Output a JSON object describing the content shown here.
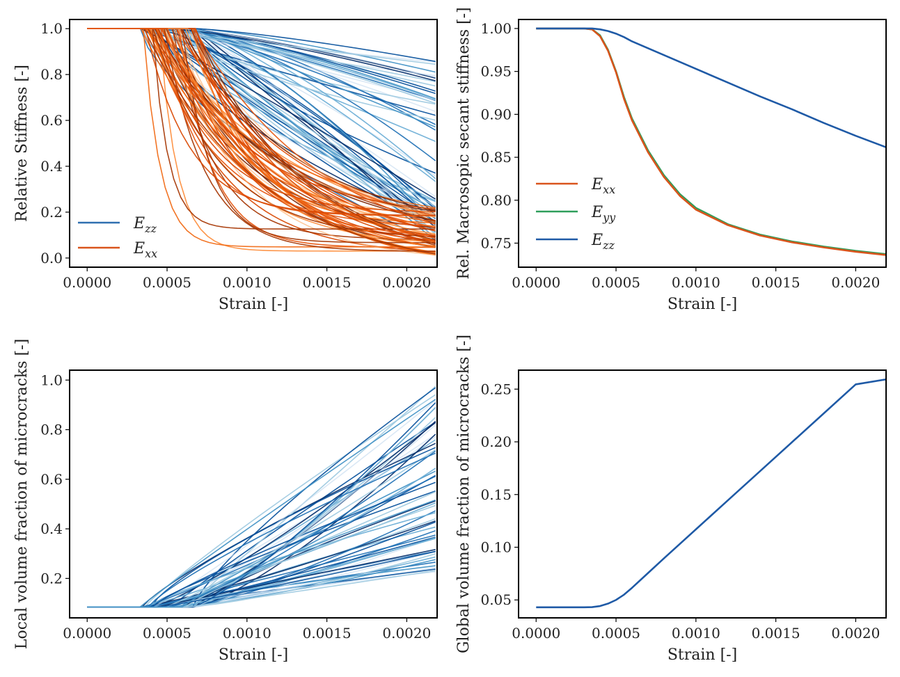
{
  "chart_data": [
    {
      "id": "p1",
      "type": "line",
      "xlabel": "Strain [-]",
      "ylabel": "Relative Stiffness [-]",
      "xlim": [
        -0.00011,
        0.00219
      ],
      "ylim": [
        -0.04,
        1.04
      ],
      "xticks": [
        0.0,
        0.0005,
        0.001,
        0.0015,
        0.002
      ],
      "xtick_labels": [
        "0.0000",
        "0.0005",
        "0.0010",
        "0.0015",
        "0.0020"
      ],
      "yticks": [
        0.0,
        0.2,
        0.4,
        0.6,
        0.8,
        1.0
      ],
      "ytick_labels": [
        "0.0",
        "0.2",
        "0.4",
        "0.6",
        "0.8",
        "1.0"
      ],
      "legend": {
        "location": "lower-left",
        "entries": [
          {
            "label": "E_zz",
            "text": "E",
            "sub": "zz",
            "color": "#2f6fb0"
          },
          {
            "label": "E_xx",
            "text": "E",
            "sub": "xx",
            "color": "#d9541c"
          }
        ]
      },
      "families": [
        {
          "name": "E_zz",
          "start_x": [
            0.00033,
            0.00069
          ],
          "end_y": [
            0.05,
            0.86
          ],
          "shape": "gradual-decay",
          "count": 60,
          "colors": [
            "#08306b",
            "#08519c",
            "#2171b5",
            "#4292c6",
            "#6baed6",
            "#9ecae1",
            "#c6dbef"
          ]
        },
        {
          "name": "E_xx",
          "start_x": [
            0.00033,
            0.00069
          ],
          "end_y": [
            0.01,
            0.22
          ],
          "shape": "exponential-decay",
          "count": 60,
          "colors": [
            "#7f2704",
            "#a63603",
            "#d94801",
            "#e6550d",
            "#f16913",
            "#fd8d3c",
            "#fdae6b"
          ]
        }
      ]
    },
    {
      "id": "p2",
      "type": "line",
      "xlabel": "Strain [-]",
      "ylabel": "Rel. Macrosopic secant stiffness [-]",
      "xlim": [
        -0.00011,
        0.00219
      ],
      "ylim": [
        0.722,
        1.0105
      ],
      "xticks": [
        0.0,
        0.0005,
        0.001,
        0.0015,
        0.002
      ],
      "xtick_labels": [
        "0.0000",
        "0.0005",
        "0.0010",
        "0.0015",
        "0.0020"
      ],
      "yticks": [
        0.75,
        0.8,
        0.85,
        0.9,
        0.95,
        1.0
      ],
      "ytick_labels": [
        "0.75",
        "0.80",
        "0.85",
        "0.90",
        "0.95",
        "1.00"
      ],
      "legend": {
        "location": "center-left",
        "entries": [
          {
            "label": "E_xx",
            "text": "E",
            "sub": "xx",
            "color": "#d9541c"
          },
          {
            "label": "E_yy",
            "text": "E",
            "sub": "yy",
            "color": "#2e9e5b"
          },
          {
            "label": "E_zz",
            "text": "E",
            "sub": "zz",
            "color": "#1f5aa6"
          }
        ]
      },
      "series": [
        {
          "name": "E_yy",
          "color": "#2e9e5b",
          "x": [
            0,
            0.0003,
            0.00035,
            0.0004,
            0.00045,
            0.0005,
            0.00055,
            0.0006,
            0.0007,
            0.0008,
            0.0009,
            0.001,
            0.0012,
            0.0014,
            0.0016,
            0.0018,
            0.002,
            0.0022
          ],
          "y": [
            1.0,
            1.0,
            0.999,
            0.992,
            0.975,
            0.95,
            0.92,
            0.895,
            0.858,
            0.829,
            0.807,
            0.791,
            0.772,
            0.76,
            0.752,
            0.746,
            0.741,
            0.737
          ]
        },
        {
          "name": "E_xx",
          "color": "#d9541c",
          "x": [
            0,
            0.0003,
            0.00035,
            0.0004,
            0.00045,
            0.0005,
            0.00055,
            0.0006,
            0.0007,
            0.0008,
            0.0009,
            0.001,
            0.0012,
            0.0014,
            0.0016,
            0.0018,
            0.002,
            0.0022
          ],
          "y": [
            1.0,
            1.0,
            0.999,
            0.991,
            0.974,
            0.949,
            0.918,
            0.893,
            0.856,
            0.827,
            0.805,
            0.789,
            0.771,
            0.759,
            0.751,
            0.745,
            0.74,
            0.736
          ]
        },
        {
          "name": "E_zz",
          "color": "#1f5aa6",
          "x": [
            0,
            0.0003,
            0.00035,
            0.0004,
            0.00045,
            0.0005,
            0.00055,
            0.0006,
            0.0008,
            0.001,
            0.0012,
            0.0014,
            0.0016,
            0.0018,
            0.002,
            0.0022
          ],
          "y": [
            1.0,
            1.0,
            1.0,
            0.999,
            0.997,
            0.994,
            0.99,
            0.985,
            0.969,
            0.953,
            0.937,
            0.921,
            0.906,
            0.89,
            0.875,
            0.861
          ]
        }
      ]
    },
    {
      "id": "p3",
      "type": "line",
      "xlabel": "Strain [-]",
      "ylabel": "Local volume fraction of microcracks [-]",
      "xlim": [
        -0.00011,
        0.00219
      ],
      "ylim": [
        0.041,
        1.04
      ],
      "xticks": [
        0.0,
        0.0005,
        0.001,
        0.0015,
        0.002
      ],
      "xtick_labels": [
        "0.0000",
        "0.0005",
        "0.0010",
        "0.0015",
        "0.0020"
      ],
      "yticks": [
        0.2,
        0.4,
        0.6,
        0.8,
        1.0
      ],
      "ytick_labels": [
        "0.2",
        "0.4",
        "0.6",
        "0.8",
        "1.0"
      ],
      "families": [
        {
          "name": "local_fraction",
          "base_y": 0.085,
          "start_x": [
            0.00033,
            0.00069
          ],
          "end_y": [
            0.22,
            0.99
          ],
          "shape": "rising",
          "count": 60,
          "colors": [
            "#08306b",
            "#08519c",
            "#2171b5",
            "#4292c6",
            "#6baed6",
            "#9ecae1",
            "#c6dbef"
          ]
        }
      ]
    },
    {
      "id": "p4",
      "type": "line",
      "xlabel": "Strain [-]",
      "ylabel": "Global volume fraction of microcracks [-]",
      "xlim": [
        -0.00011,
        0.00219
      ],
      "ylim": [
        0.033,
        0.268
      ],
      "xticks": [
        0.0,
        0.0005,
        0.001,
        0.0015,
        0.002
      ],
      "xtick_labels": [
        "0.0000",
        "0.0005",
        "0.0010",
        "0.0015",
        "0.0020"
      ],
      "yticks": [
        0.05,
        0.1,
        0.15,
        0.2,
        0.25
      ],
      "ytick_labels": [
        "0.05",
        "0.10",
        "0.15",
        "0.20",
        "0.25"
      ],
      "series": [
        {
          "name": "global_fraction",
          "color": "#1f5aa6",
          "x": [
            0,
            0.0003,
            0.00035,
            0.0004,
            0.00045,
            0.0005,
            0.00055,
            0.0006,
            0.0007,
            0.0008,
            0.001,
            0.0012,
            0.0014,
            0.0016,
            0.0018,
            0.002,
            0.0022
          ],
          "y": [
            0.043,
            0.043,
            0.0432,
            0.0442,
            0.0465,
            0.05,
            0.055,
            0.0615,
            0.0755,
            0.0895,
            0.117,
            0.1445,
            0.172,
            0.1995,
            0.227,
            0.2545,
            0.2595
          ]
        }
      ]
    }
  ]
}
